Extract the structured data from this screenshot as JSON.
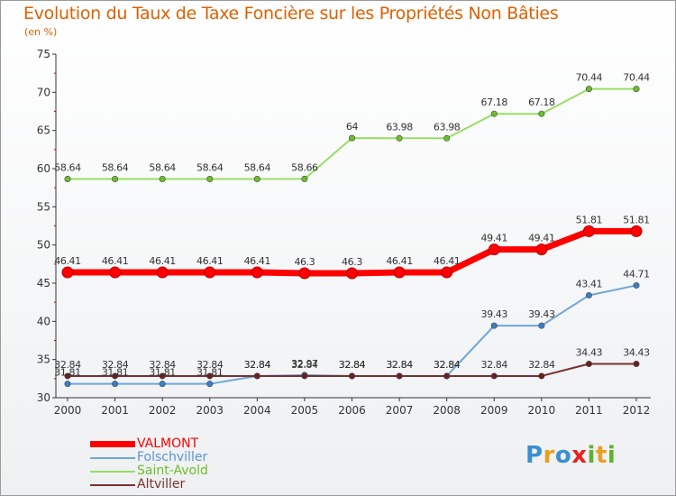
{
  "title": "Evolution du Taux de Taxe Foncière sur les Propriétés Non Bâties",
  "unit_label": "(en %)",
  "logo": {
    "text": "Proxiti",
    "letters": [
      "P",
      "r",
      "o",
      "x",
      "i",
      "t",
      "i"
    ],
    "colors": [
      "#3a8fd0",
      "#e8a020",
      "#3a8fd0",
      "#e82020",
      "#60b030",
      "#e8a020",
      "#60b030"
    ]
  },
  "chart_data": {
    "type": "line",
    "categories": [
      "2000",
      "2001",
      "2002",
      "2003",
      "2004",
      "2005",
      "2006",
      "2007",
      "2008",
      "2009",
      "2010",
      "2011",
      "2012"
    ],
    "ylim": [
      30,
      75
    ],
    "yticks": [
      30,
      35,
      40,
      45,
      50,
      55,
      60,
      65,
      70,
      75
    ],
    "grid": false,
    "legend_position": "bottom-left",
    "series": [
      {
        "name": "VALMONT",
        "color": "#ff0000",
        "marker_color": "#ee0000",
        "width": "thick",
        "values": [
          46.41,
          46.41,
          46.41,
          46.41,
          46.41,
          46.3,
          46.3,
          46.41,
          46.41,
          49.41,
          49.41,
          51.81,
          51.81
        ],
        "labels": [
          "46.41",
          "46.41",
          "46.41",
          "46.41",
          "46.41",
          "46.3",
          "46.3",
          "46.41",
          "46.41",
          "49.41",
          "49.41",
          "51.81",
          "51.81"
        ]
      },
      {
        "name": "Folschviller",
        "color": "#6ea6d8",
        "marker_color": "#3b7fc4",
        "width": "thin",
        "values": [
          31.81,
          31.81,
          31.81,
          31.81,
          32.84,
          32.97,
          32.84,
          32.84,
          32.84,
          39.43,
          39.43,
          43.41,
          44.71
        ],
        "labels": [
          "31.81",
          "31.81",
          "31.81",
          "31.81",
          "32.84",
          "32.97",
          "32.84",
          "32.84",
          "32.84",
          "39.43",
          "39.43",
          "43.41",
          "44.71"
        ]
      },
      {
        "name": "Saint-Avold",
        "color": "#99dd66",
        "marker_color": "#6cbf2a",
        "width": "thin",
        "values": [
          58.64,
          58.64,
          58.64,
          58.64,
          58.64,
          58.66,
          64,
          63.98,
          63.98,
          67.18,
          67.18,
          70.44,
          70.44
        ],
        "labels": [
          "58.64",
          "58.64",
          "58.64",
          "58.64",
          "58.64",
          "58.66",
          "64",
          "63.98",
          "63.98",
          "67.18",
          "67.18",
          "70.44",
          "70.44"
        ]
      },
      {
        "name": "Altviller",
        "color": "#7a3030",
        "marker_color": "#6a2020",
        "width": "thin",
        "values": [
          32.84,
          32.84,
          32.84,
          32.84,
          32.84,
          32.84,
          32.84,
          32.84,
          32.84,
          32.84,
          32.84,
          34.43,
          34.43
        ],
        "labels": [
          "32.84",
          "32.84",
          "32.84",
          "32.84",
          "32.84",
          "32.84",
          "32.84",
          "32.84",
          "32.84",
          "32.84",
          "32.84",
          "34.43",
          "34.43"
        ]
      }
    ]
  }
}
